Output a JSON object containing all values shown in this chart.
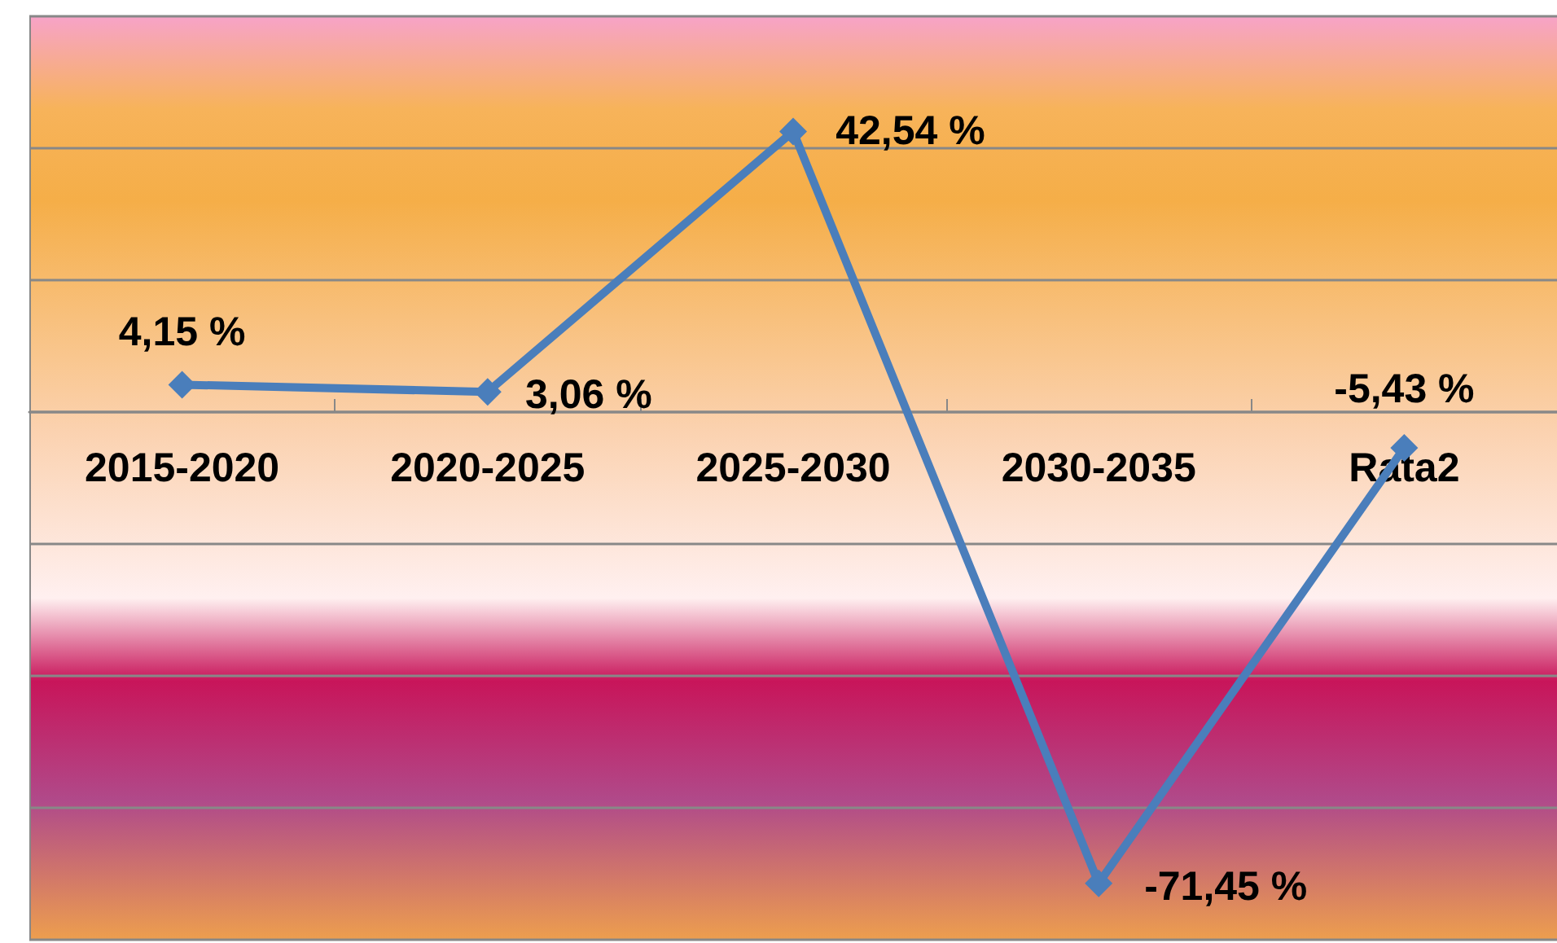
{
  "chart_data": {
    "type": "line",
    "categories": [
      "2015-2020",
      "2020-2025",
      "2025-2030",
      "2030-2035",
      "Rata2"
    ],
    "series": [
      {
        "color": "#4a7ebb",
        "values": [
          4.15,
          3.06,
          42.54,
          -71.45,
          -5.43
        ],
        "value_labels": [
          "4,15 %",
          "3,06 %",
          "42,54 %",
          "-71,45 %",
          "-5,43 %"
        ]
      }
    ],
    "ylim": [
      -80,
      60
    ],
    "yticks": [
      {
        "value": -80,
        "label": null
      },
      {
        "value": -60,
        "label": null
      },
      {
        "value": -40,
        "label": null
      },
      {
        "value": -20,
        "label": null
      },
      {
        "value": 0,
        "label": null
      },
      {
        "value": 20,
        "label": null
      },
      {
        "value": 40,
        "label": null
      },
      {
        "value": 60,
        "label": null
      }
    ],
    "tick_labels": "x",
    "grid": "y",
    "marker": "diamond",
    "line_style": "solid"
  }
}
